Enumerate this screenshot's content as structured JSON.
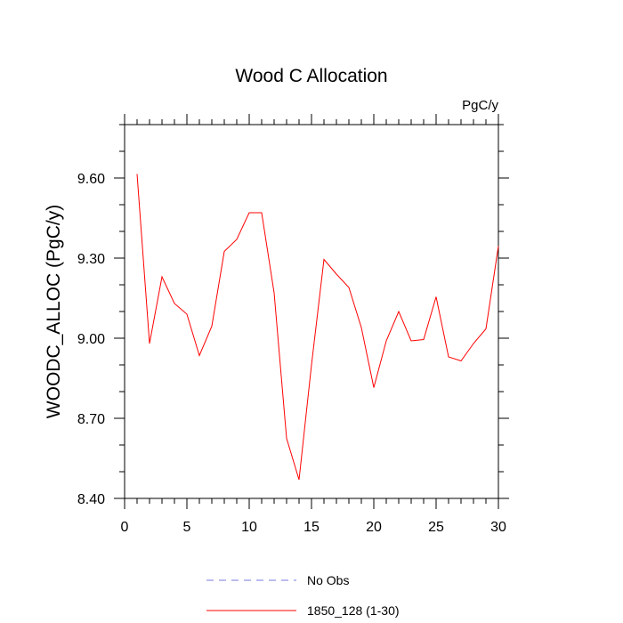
{
  "chart_data": {
    "type": "line",
    "title": "Wood C Allocation",
    "units_label": "PgC/y",
    "xlabel": "",
    "ylabel": "WOODC_ALLOC  (PgC/y)",
    "xlim": [
      0,
      30
    ],
    "ylim": [
      8.4,
      9.8
    ],
    "x_major_ticks": [
      0,
      5,
      10,
      15,
      20,
      25,
      30
    ],
    "x_tick_labels": [
      "0",
      "5",
      "10",
      "15",
      "20",
      "25",
      "30"
    ],
    "y_major_ticks": [
      8.4,
      8.7,
      9.0,
      9.3,
      9.6
    ],
    "y_tick_labels": [
      "8.40",
      "8.70",
      "9.00",
      "9.30",
      "9.60"
    ],
    "grid": false,
    "legend_position": "bottom",
    "series": [
      {
        "name": "No Obs",
        "style": "dashed",
        "color": "#7a7ae0",
        "x": [],
        "y": []
      },
      {
        "name": "1850_128 (1-30)",
        "style": "solid",
        "color": "#ff0000",
        "x": [
          1,
          2,
          3,
          4,
          5,
          6,
          7,
          8,
          9,
          10,
          11,
          12,
          13,
          14,
          15,
          16,
          17,
          18,
          19,
          20,
          21,
          22,
          23,
          24,
          25,
          26,
          27,
          28,
          29,
          30
        ],
        "y": [
          9.615,
          8.98,
          9.23,
          9.13,
          9.09,
          8.935,
          9.045,
          9.325,
          9.37,
          9.47,
          9.47,
          9.17,
          8.625,
          8.47,
          8.9,
          9.295,
          9.24,
          9.19,
          9.04,
          8.815,
          8.99,
          9.1,
          8.99,
          8.995,
          9.155,
          8.93,
          8.915,
          8.98,
          9.035,
          9.345
        ]
      }
    ]
  }
}
